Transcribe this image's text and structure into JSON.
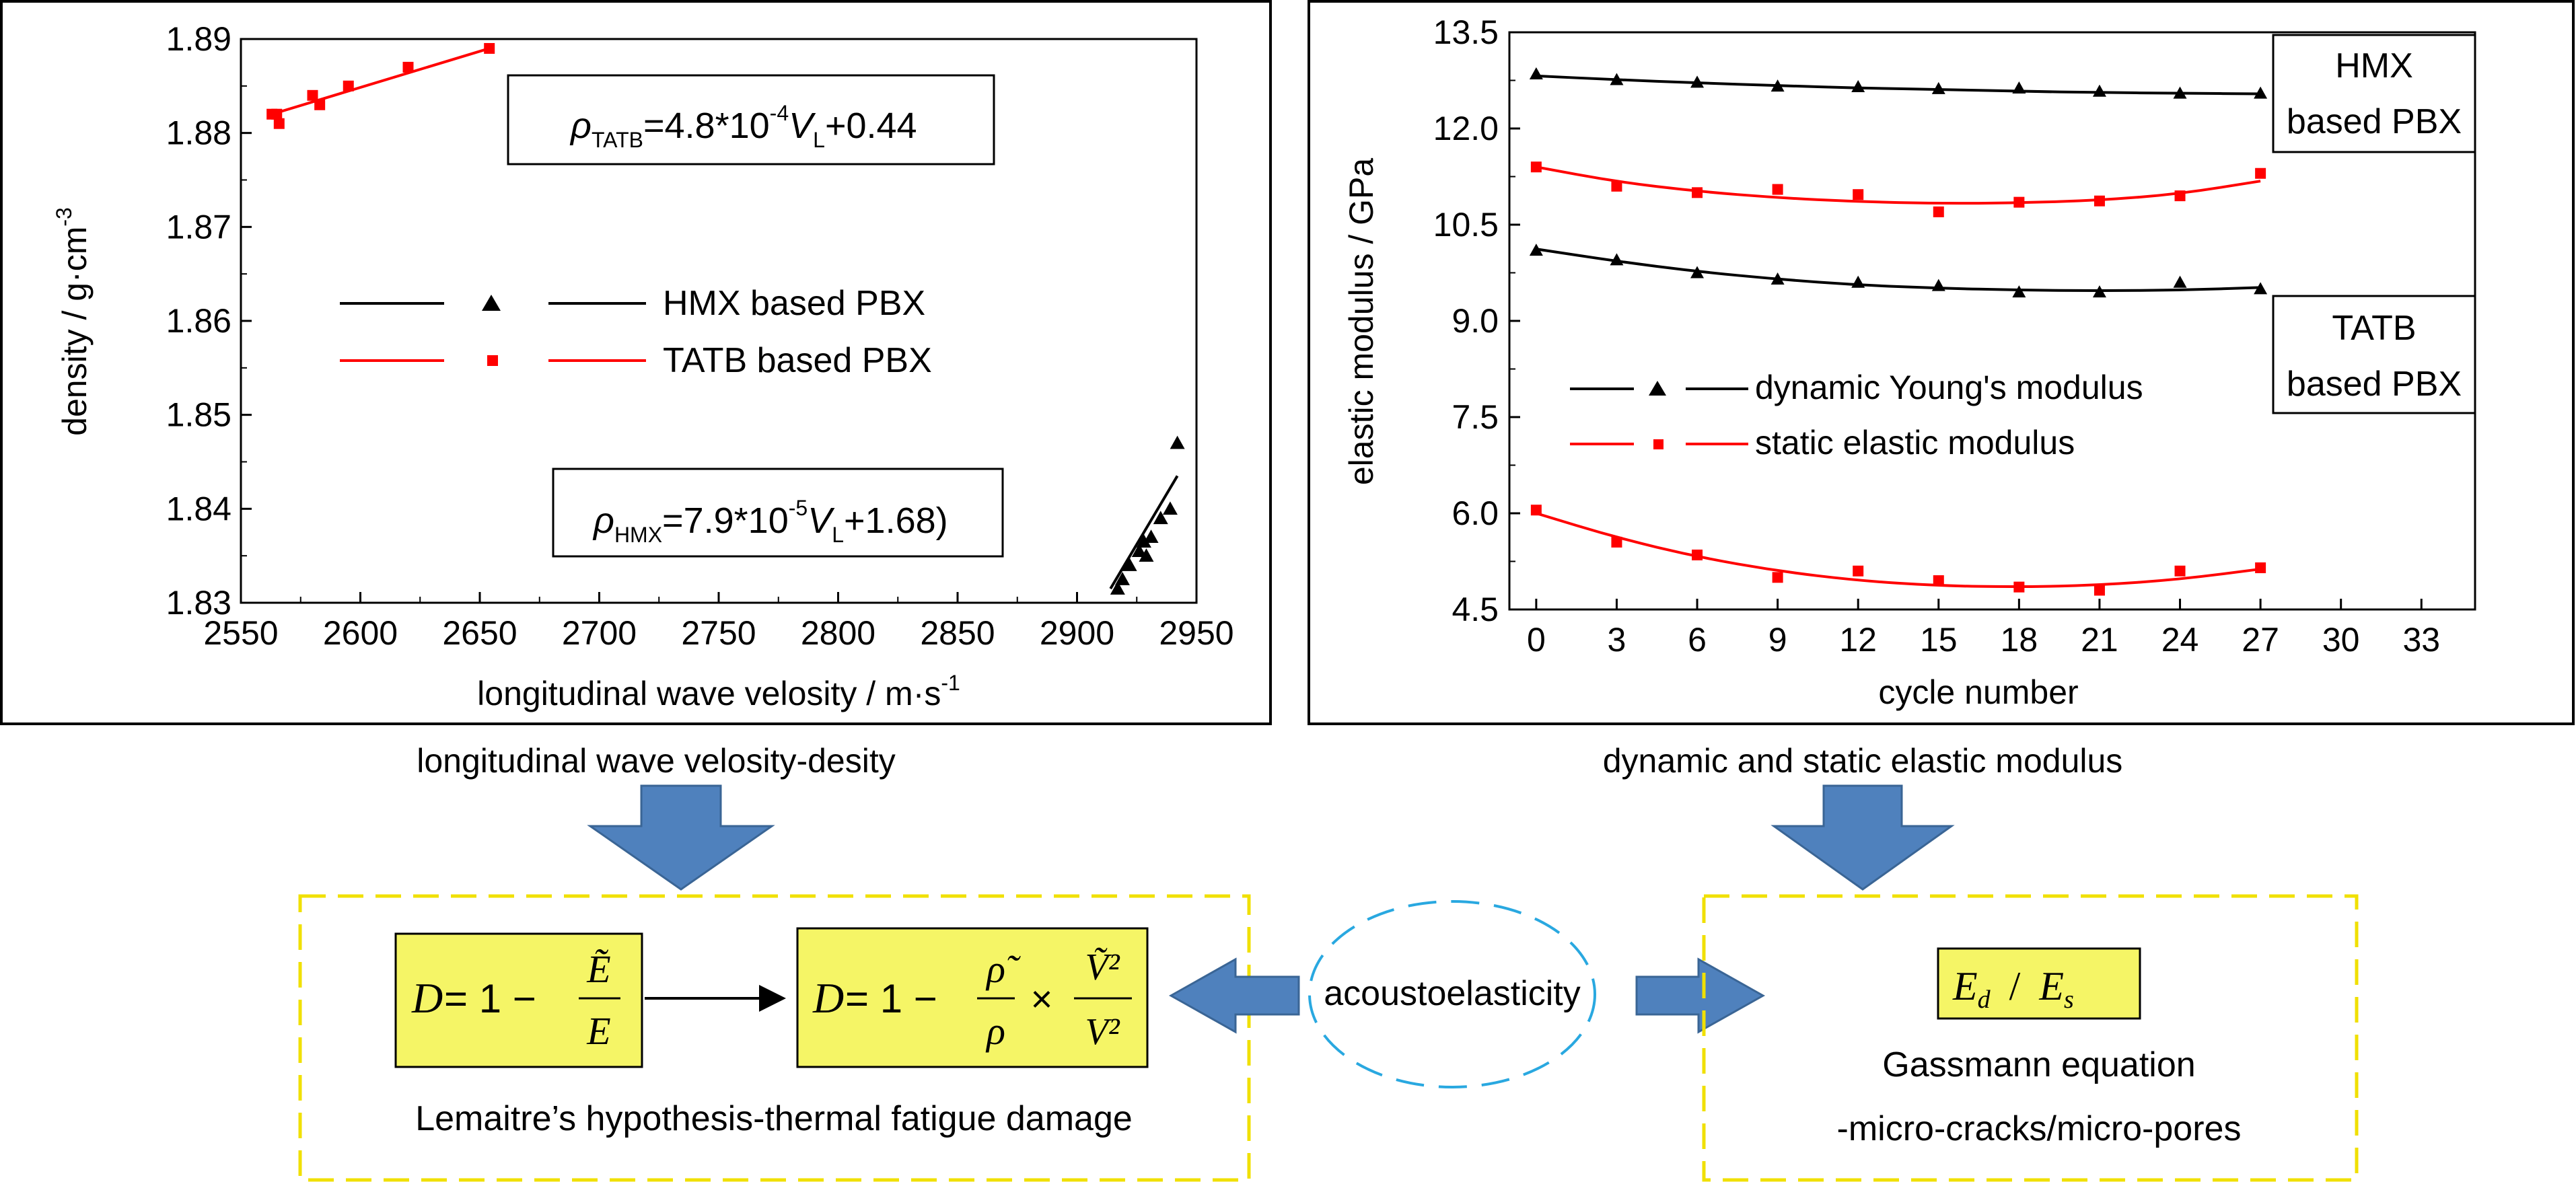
{
  "left_panel": {
    "chart_data": {
      "type": "scatter",
      "xlabel": "longitudinal wave velosity / m·s",
      "xlabel_sup": "-1",
      "ylabel": "density / g·cm",
      "ylabel_sup": "-3",
      "xlim": [
        2550,
        2950
      ],
      "ylim": [
        1.83,
        1.89
      ],
      "xticks": [
        "2550",
        "2600",
        "2650",
        "2700",
        "2750",
        "2800",
        "2850",
        "2900",
        "2950"
      ],
      "yticks": [
        "1.83",
        "1.84",
        "1.85",
        "1.86",
        "1.87",
        "1.88",
        "1.89"
      ],
      "legend_placement": "center-left",
      "series": [
        {
          "name": "HMX based PBX",
          "marker": "triangle",
          "color": "#000000",
          "points": [
            [
              2917,
              1.8315
            ],
            [
              2919,
              1.8325
            ],
            [
              2922,
              1.834
            ],
            [
              2926,
              1.8355
            ],
            [
              2928,
              1.8365
            ],
            [
              2929,
              1.835
            ],
            [
              2931,
              1.837
            ],
            [
              2935,
              1.839
            ],
            [
              2939,
              1.84
            ],
            [
              2942,
              1.847
            ]
          ],
          "fit": [
            [
              2914,
              1.8315
            ],
            [
              2942,
              1.8435
            ]
          ]
        },
        {
          "name": "TATB based PBX",
          "marker": "square",
          "color": "#ff0000",
          "points": [
            [
              2563,
              1.882
            ],
            [
              2565,
              1.882
            ],
            [
              2566,
              1.881
            ],
            [
              2580,
              1.884
            ],
            [
              2583,
              1.883
            ],
            [
              2595,
              1.885
            ],
            [
              2620,
              1.887
            ],
            [
              2654,
              1.889
            ]
          ],
          "fit": [
            [
              2563,
              1.882
            ],
            [
              2654,
              1.889
            ]
          ]
        }
      ]
    },
    "eq_tatb": {
      "sym": "ρ",
      "sub": "TATB",
      "a": "=4.8*10",
      "exp": "-4",
      "v": "V",
      "vsub": "L",
      "b": "+0.44"
    },
    "eq_hmx": {
      "sym": "ρ",
      "sub": "HMX",
      "a": "=7.9*10",
      "exp": "-5",
      "v": "V",
      "vsub": "L",
      "b": "+1.68)"
    },
    "caption": "longitudinal wave velosity-desity"
  },
  "right_panel": {
    "chart_data": {
      "type": "line",
      "xlabel": "cycle number",
      "ylabel": "elastic modulus / GPa",
      "xlim": [
        -1,
        35
      ],
      "ylim": [
        4.5,
        13.5
      ],
      "xticks": [
        "0",
        "3",
        "6",
        "9",
        "12",
        "15",
        "18",
        "21",
        "24",
        "27",
        "30",
        "33"
      ],
      "yticks": [
        "4.5",
        "6.0",
        "7.5",
        "9.0",
        "10.5",
        "12.0",
        "13.5"
      ],
      "legend_placement": "center-left",
      "series": [
        {
          "name": "dynamic Young's modulus",
          "group": "HMX based PBX",
          "marker": "triangle",
          "color": "#000000",
          "x": [
            0,
            3,
            6,
            9,
            12,
            15,
            18,
            21,
            24,
            27
          ],
          "y": [
            12.85,
            12.76,
            12.72,
            12.66,
            12.65,
            12.62,
            12.63,
            12.58,
            12.55,
            12.55
          ],
          "fit": [
            12.82,
            12.76,
            12.71,
            12.67,
            12.63,
            12.61,
            12.58,
            12.56,
            12.55,
            12.54
          ]
        },
        {
          "name": "static elastic modulus",
          "group": "HMX based PBX",
          "marker": "square",
          "color": "#ff0000",
          "x": [
            0,
            3,
            6,
            9,
            12,
            15,
            18,
            21,
            24,
            27
          ],
          "y": [
            11.4,
            11.1,
            11.0,
            11.05,
            10.97,
            10.7,
            10.85,
            10.87,
            10.95,
            11.3
          ],
          "fit": [
            11.4,
            11.17,
            11.02,
            10.92,
            10.86,
            10.83,
            10.84,
            10.88,
            10.98,
            11.18
          ]
        },
        {
          "name": "dynamic Young's modulus",
          "group": "TATB based PBX",
          "marker": "triangle",
          "color": "#000000",
          "x": [
            0,
            3,
            6,
            9,
            12,
            15,
            18,
            21,
            24,
            27
          ],
          "y": [
            10.1,
            9.95,
            9.75,
            9.65,
            9.6,
            9.55,
            9.45,
            9.45,
            9.6,
            9.5
          ],
          "fit": [
            10.12,
            9.93,
            9.77,
            9.65,
            9.56,
            9.51,
            9.48,
            9.47,
            9.48,
            9.52
          ]
        },
        {
          "name": "static elastic modulus",
          "group": "TATB based PBX",
          "marker": "square",
          "color": "#ff0000",
          "x": [
            0,
            3,
            6,
            9,
            12,
            15,
            18,
            21,
            24,
            27
          ],
          "y": [
            6.05,
            5.55,
            5.35,
            5.0,
            5.1,
            4.95,
            4.85,
            4.8,
            5.1,
            5.15
          ],
          "fit": [
            6.0,
            5.62,
            5.32,
            5.1,
            4.95,
            4.87,
            4.85,
            4.88,
            4.97,
            5.13
          ]
        }
      ],
      "group_labels": [
        {
          "line1": "HMX",
          "line2": "based PBX"
        },
        {
          "line1": "TATB",
          "line2": "based PBX"
        }
      ]
    },
    "caption": "dynamic and static elastic modulus"
  },
  "bottom": {
    "eq_d1": {
      "lhs": "D",
      "rest": " = 1 − ",
      "num": "Ẽ",
      "den": "E"
    },
    "eq_d2": {
      "lhs": "D",
      "rest": " = 1 − ",
      "num1": "ρ̃",
      "den1": "ρ",
      "times": "×",
      "num2": "Ṽ²",
      "den2": "V²"
    },
    "lemaitre_caption": "Lemaitre’s hypothesis-thermal fatigue damage",
    "center_label": "acoustoelasticity",
    "ratio": {
      "a": "E",
      "asub": "d",
      "slash": "/",
      "b": "E",
      "bsub": "s"
    },
    "gassmann_line1": "Gassmann equation",
    "gassmann_line2": "-micro-cracks/micro-pores"
  },
  "colors": {
    "arrow_fill": "#4f81bd",
    "arrow_stroke": "#3a6595",
    "box_yellow": "#f5f566",
    "dash_yellow": "#f0e000",
    "ellipse_blue": "#29a8e0",
    "red": "#ff0000"
  }
}
